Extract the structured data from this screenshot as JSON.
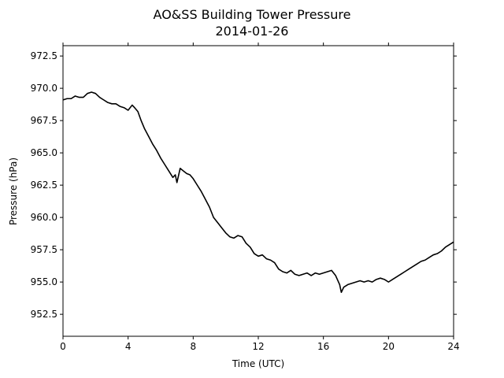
{
  "chart_data": {
    "type": "line",
    "title": "AO&SS Building Tower Pressure",
    "subtitle": "2014-01-26",
    "xlabel": "Time (UTC)",
    "ylabel": "Pressure (hPa)",
    "xlim": [
      0,
      24
    ],
    "ylim": [
      950.8,
      973.3
    ],
    "x_ticks": [
      0,
      4,
      8,
      12,
      16,
      20,
      24
    ],
    "x_tick_labels": [
      "0",
      "4",
      "8",
      "12",
      "16",
      "20",
      "24"
    ],
    "y_ticks": [
      952.5,
      955.0,
      957.5,
      960.0,
      962.5,
      965.0,
      967.5,
      970.0,
      972.5
    ],
    "y_tick_labels": [
      "952.5",
      "955.0",
      "957.5",
      "960.0",
      "962.5",
      "965.0",
      "967.5",
      "970.0",
      "972.5"
    ],
    "grid": false,
    "line_color": "#000000",
    "series": [
      {
        "x": [
          0.0,
          0.25,
          0.5,
          0.75,
          1.0,
          1.25,
          1.5,
          1.75,
          2.0,
          2.25,
          2.5,
          2.75,
          3.0,
          3.25,
          3.5,
          3.75,
          4.0,
          4.25,
          4.4,
          4.6,
          4.8,
          5.0,
          5.25,
          5.5,
          5.75,
          6.0,
          6.25,
          6.5,
          6.75,
          6.9,
          7.0,
          7.2,
          7.4,
          7.6,
          7.8,
          8.0,
          8.25,
          8.5,
          8.75,
          9.0,
          9.25,
          9.5,
          9.75,
          10.0,
          10.25,
          10.5,
          10.75,
          11.0,
          11.25,
          11.5,
          11.75,
          12.0,
          12.25,
          12.5,
          12.75,
          13.0,
          13.25,
          13.5,
          13.75,
          14.0,
          14.25,
          14.5,
          14.75,
          15.0,
          15.25,
          15.5,
          15.75,
          16.0,
          16.25,
          16.5,
          16.75,
          17.0,
          17.1,
          17.25,
          17.5,
          17.75,
          18.0,
          18.25,
          18.5,
          18.75,
          19.0,
          19.25,
          19.5,
          19.75,
          20.0,
          20.25,
          20.5,
          20.75,
          21.0,
          21.25,
          21.5,
          21.75,
          22.0,
          22.25,
          22.5,
          22.75,
          23.0,
          23.25,
          23.5,
          23.75,
          24.0
        ],
        "y": [
          969.1,
          969.2,
          969.2,
          969.4,
          969.3,
          969.3,
          969.6,
          969.7,
          969.6,
          969.3,
          969.1,
          968.9,
          968.8,
          968.8,
          968.6,
          968.5,
          968.3,
          968.7,
          968.5,
          968.2,
          967.5,
          966.9,
          966.3,
          965.7,
          965.2,
          964.6,
          964.1,
          963.6,
          963.1,
          963.3,
          962.7,
          963.8,
          963.6,
          963.4,
          963.3,
          963.0,
          962.5,
          962.0,
          961.4,
          960.8,
          960.0,
          959.6,
          959.2,
          958.8,
          958.5,
          958.4,
          958.6,
          958.5,
          958.0,
          957.7,
          957.2,
          957.0,
          957.1,
          956.8,
          956.7,
          956.5,
          956.0,
          955.8,
          955.7,
          955.9,
          955.6,
          955.5,
          955.6,
          955.7,
          955.5,
          955.7,
          955.6,
          955.7,
          955.8,
          955.9,
          955.5,
          954.8,
          954.2,
          954.6,
          954.8,
          954.9,
          955.0,
          955.1,
          955.0,
          955.1,
          955.0,
          955.2,
          955.3,
          955.2,
          955.0,
          955.2,
          955.4,
          955.6,
          955.8,
          956.0,
          956.2,
          956.4,
          956.6,
          956.7,
          956.9,
          957.1,
          957.2,
          957.4,
          957.7,
          957.9,
          958.1
        ]
      }
    ]
  }
}
